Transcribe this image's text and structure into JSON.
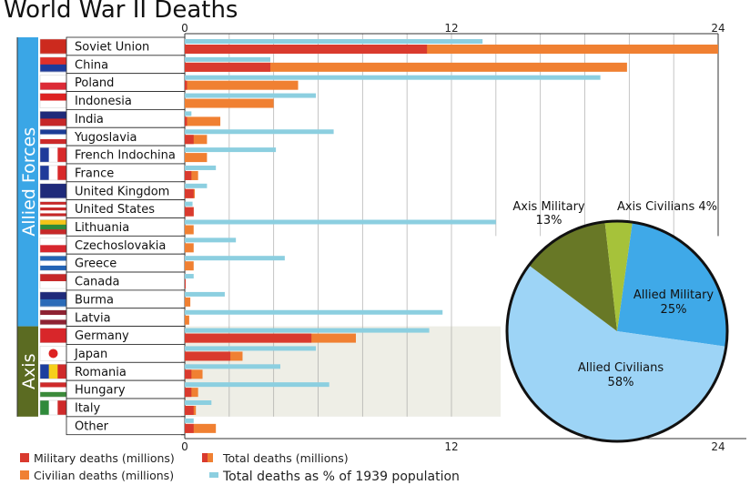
{
  "chart_data": {
    "type": "bar",
    "title": "World War II Deaths",
    "xlim": [
      0,
      24
    ],
    "xticks": [
      "0",
      "12",
      "24"
    ],
    "grid": true,
    "groups": [
      {
        "label": "Allied Forces",
        "color": "#3aa6e6"
      },
      {
        "label": "Axis",
        "color": "#5b6b22"
      }
    ],
    "legend": {
      "military": "Military deaths (millions)",
      "civilian": "Civilian deaths (millions)",
      "total": "Total deaths (millions)",
      "percent": "Total deaths as % of 1939 population"
    },
    "colors": {
      "military": "#d93a2e",
      "civilian": "#f08032",
      "percent": "#8ccfe0",
      "axis_bg": "#eeeee6"
    },
    "countries": [
      {
        "name": "Soviet Union",
        "group": "Allied Forces",
        "military": 10.9,
        "total": 24.0,
        "percent": 13.4,
        "flag": [
          "#cc2a1e"
        ]
      },
      {
        "name": "China",
        "group": "Allied Forces",
        "military": 3.85,
        "total": 19.9,
        "percent": 3.85,
        "flag": [
          "#e0302a",
          "#1c3b9c"
        ]
      },
      {
        "name": "Poland",
        "group": "Allied Forces",
        "military": 0.1,
        "total": 5.1,
        "percent": 18.7,
        "flag": [
          "#ffffff",
          "#dc2a36"
        ]
      },
      {
        "name": "Indonesia",
        "group": "Allied Forces",
        "military": 0.0,
        "total": 4.0,
        "percent": 5.9,
        "flag": [
          "#d22",
          "#ffffff"
        ]
      },
      {
        "name": "India",
        "group": "Allied Forces",
        "military": 0.1,
        "total": 1.6,
        "percent": 0.3,
        "flag": [
          "#1f2a7a",
          "#c62828"
        ]
      },
      {
        "name": "Yugoslavia",
        "group": "Allied Forces",
        "military": 0.4,
        "total": 1.0,
        "percent": 6.7,
        "flag": [
          "#1c3d96",
          "#ffffff",
          "#cc2a2a"
        ]
      },
      {
        "name": "French Indochina",
        "group": "Allied Forces",
        "military": 0.0,
        "total": 1.0,
        "percent": 4.1,
        "flag_v": [
          "#1f3b9a",
          "#ffffff",
          "#d8292a"
        ]
      },
      {
        "name": "France",
        "group": "Allied Forces",
        "military": 0.3,
        "total": 0.6,
        "percent": 1.4,
        "flag_v": [
          "#1f3b9a",
          "#ffffff",
          "#d8292a"
        ]
      },
      {
        "name": "United Kingdom",
        "group": "Allied Forces",
        "military": 0.4,
        "total": 0.45,
        "percent": 1.0,
        "flag": [
          "#1f2a7a"
        ]
      },
      {
        "name": "United States",
        "group": "Allied Forces",
        "military": 0.4,
        "total": 0.4,
        "percent": 0.35,
        "flag": [
          "#c62828",
          "#ffffff",
          "#c62828",
          "#ffffff",
          "#c62828"
        ]
      },
      {
        "name": "Lithuania",
        "group": "Allied Forces",
        "military": 0.0,
        "total": 0.4,
        "percent": 14.0,
        "flag": [
          "#f5c518",
          "#2e8b3a",
          "#c62828"
        ]
      },
      {
        "name": "Czechoslovakia",
        "group": "Allied Forces",
        "military": 0.0,
        "total": 0.4,
        "percent": 2.3,
        "flag": [
          "#ffffff",
          "#d7262e"
        ]
      },
      {
        "name": "Greece",
        "group": "Allied Forces",
        "military": 0.0,
        "total": 0.4,
        "percent": 4.5,
        "flag": [
          "#2464b5",
          "#ffffff",
          "#2464b5"
        ]
      },
      {
        "name": "Canada",
        "group": "Allied Forces",
        "military": 0.04,
        "total": 0.04,
        "percent": 0.4,
        "flag": [
          "#c62828",
          "#ffffff"
        ]
      },
      {
        "name": "Burma",
        "group": "Allied Forces",
        "military": 0.0,
        "total": 0.25,
        "percent": 1.8,
        "flag": [
          "#1f2a7a",
          "#2a6bb8"
        ]
      },
      {
        "name": "Latvia",
        "group": "Allied Forces",
        "military": 0.0,
        "total": 0.2,
        "percent": 11.6,
        "flag": [
          "#8e2232",
          "#ffffff",
          "#8e2232"
        ]
      },
      {
        "name": "Germany",
        "group": "Axis",
        "military": 5.7,
        "total": 7.7,
        "percent": 11.0,
        "flag": [
          "#d8262a"
        ]
      },
      {
        "name": "Japan",
        "group": "Axis",
        "military": 2.05,
        "total": 2.6,
        "percent": 5.9,
        "flag": [
          "#ffffff"
        ]
      },
      {
        "name": "Romania",
        "group": "Axis",
        "military": 0.3,
        "total": 0.8,
        "percent": 4.3,
        "flag_v": [
          "#1d3f9e",
          "#f6d01a",
          "#cf2a2a"
        ]
      },
      {
        "name": "Hungary",
        "group": "Axis",
        "military": 0.3,
        "total": 0.6,
        "percent": 6.5,
        "flag": [
          "#cf2a2a",
          "#ffffff",
          "#3a8a3a"
        ]
      },
      {
        "name": "Italy",
        "group": "Axis",
        "military": 0.4,
        "total": 0.5,
        "percent": 1.2,
        "flag_v": [
          "#2f8a3a",
          "#ffffff",
          "#cf2a2a"
        ]
      },
      {
        "name": "Other",
        "group": "",
        "military": 0.4,
        "total": 1.4,
        "percent": 0.4
      }
    ],
    "pie": {
      "slices": [
        {
          "label": "Allied Military",
          "value": 25,
          "color": "#3fa9e8",
          "text": "Allied Military",
          "pct": "25%"
        },
        {
          "label": "Allied Civilians",
          "value": 58,
          "color": "#9dd4f6",
          "text": "Allied Civilians",
          "pct": "58%"
        },
        {
          "label": "Axis Military",
          "value": 13,
          "color": "#687826",
          "text": "Axis Military",
          "pct": "13%"
        },
        {
          "label": "Axis Civilians",
          "value": 4,
          "color": "#a6c23a",
          "text": "Axis Civilians 4%",
          "pct": ""
        }
      ]
    }
  }
}
